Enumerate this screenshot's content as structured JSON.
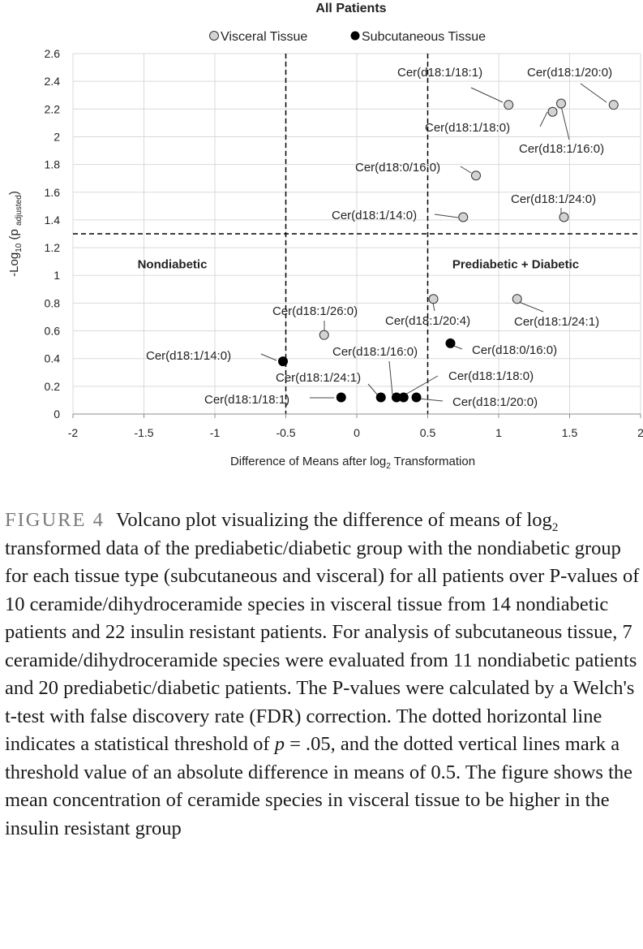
{
  "chart_data": {
    "type": "scatter",
    "title": "All Patients",
    "xlabel_parts": [
      "Difference of Means after log",
      "2",
      " Transformation"
    ],
    "ylabel_parts": [
      "-Log",
      "10",
      " (p ",
      "adjusted",
      ")"
    ],
    "xlim": [
      -2,
      2
    ],
    "ylim": [
      0,
      2.6
    ],
    "x_ticks": [
      -2,
      -1.5,
      -1,
      -0.5,
      0,
      0.5,
      1,
      1.5,
      2
    ],
    "x_tick_labels": [
      "-2",
      "-1.5",
      "-1",
      "-0.5",
      "0",
      "0.5",
      "1",
      "1.5",
      "2"
    ],
    "y_ticks": [
      0,
      0.2,
      0.4,
      0.6,
      0.8,
      1,
      1.2,
      1.4,
      1.6,
      1.8,
      2,
      2.2,
      2.4,
      2.6
    ],
    "y_tick_labels": [
      "0",
      "0.2",
      "0.4",
      "0.6",
      "0.8",
      "1",
      "1.2",
      "1.4",
      "1.6",
      "1.8",
      "2",
      "2.2",
      "2.4",
      "2.6"
    ],
    "grid": true,
    "legend_position": "top",
    "threshold_lines": {
      "horizontal_y": 1.3,
      "vertical_x": [
        -0.5,
        0.5
      ]
    },
    "region_labels": [
      {
        "text": "Nondiabetic",
        "x": -1.3,
        "y": 1.08
      },
      {
        "text": "Prediabetic + Diabetic",
        "x": 1.12,
        "y": 1.08
      }
    ],
    "series": [
      {
        "name": "Visceral Tissue",
        "color": "#d3d3d3",
        "points": [
          {
            "label": "Cer(d18:1/18:1)",
            "x": 1.07,
            "y": 2.23
          },
          {
            "label": "Cer(d18:1/20:0)",
            "x": 1.81,
            "y": 2.23
          },
          {
            "label": "Cer(d18:1/18:0)",
            "x": 1.38,
            "y": 2.18
          },
          {
            "label": "Cer(d18:1/16:0)",
            "x": 1.44,
            "y": 2.24
          },
          {
            "label": "Cer(d18:0/16:0)",
            "x": 0.84,
            "y": 1.72
          },
          {
            "label": "Cer(d18:1/24:0)",
            "x": 1.46,
            "y": 1.42
          },
          {
            "label": "Cer(d18:1/14:0)",
            "x": 0.75,
            "y": 1.42
          },
          {
            "label": "Cer(d18:1/20:4)",
            "x": 0.54,
            "y": 0.83
          },
          {
            "label": "Cer(d18:1/24:1)",
            "x": 1.13,
            "y": 0.83
          },
          {
            "label": "Cer(d18:1/26:0)",
            "x": -0.23,
            "y": 0.57
          }
        ]
      },
      {
        "name": "Subcutaneous Tissue",
        "color": "#000000",
        "points": [
          {
            "label": "Cer(d18:1/14:0)",
            "x": -0.52,
            "y": 0.38
          },
          {
            "label": "Cer(d18:0/16:0)",
            "x": 0.66,
            "y": 0.51
          },
          {
            "label": "Cer(d18:1/18:1)",
            "x": -0.11,
            "y": 0.12
          },
          {
            "label": "Cer(d18:1/24:1)",
            "x": 0.17,
            "y": 0.12
          },
          {
            "label": "Cer(d18:1/16:0)",
            "x": 0.28,
            "y": 0.12
          },
          {
            "label": "Cer(d18:1/18:0)",
            "x": 0.33,
            "y": 0.12
          },
          {
            "label": "Cer(d18:1/20:0)",
            "x": 0.42,
            "y": 0.12
          }
        ]
      }
    ]
  },
  "caption": {
    "figure_label": "FIGURE 4",
    "part1": "Volcano plot visualizing the difference of means of log",
    "part1_sub": "2",
    "part2": " transformed data of the prediabetic/diabetic group with the nondiabetic group for each tissue type (subcutaneous and visceral) for all patients over P-values of 10 ceramide/dihydroceramide species in visceral tissue from 14 nondiabetic patients and 22 insulin resistant patients. For analysis of subcutaneous tissue, 7 ceramide/dihydroceramide species were evaluated from 11 nondiabetic patients and 20 prediabetic/diabetic patients. The P-values were calculated by a Welch's t-test with false discovery rate (FDR) correction. The dotted horizontal line indicates a statistical threshold of ",
    "p_symbol": "p",
    "part3": " = .05, and the dotted vertical lines mark a threshold value of an absolute difference in means of 0.5. The figure shows the mean concentration of ceramide species in visceral tissue to be higher in the insulin resistant group"
  }
}
